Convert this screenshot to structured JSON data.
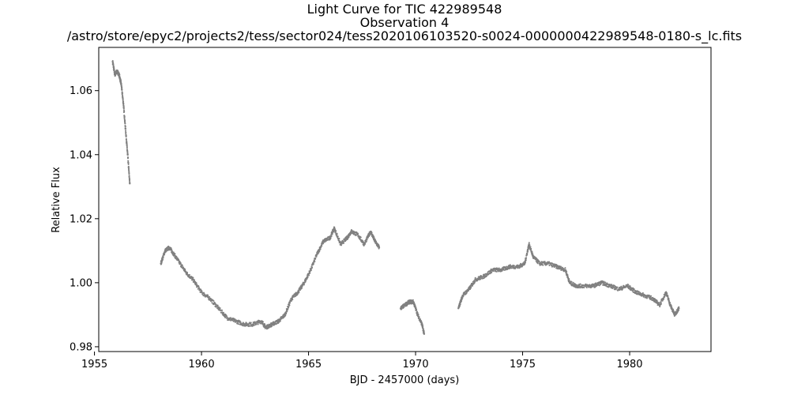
{
  "chart_data": {
    "type": "scatter",
    "title": "Light Curve for TIC 422989548",
    "subtitle": "Observation 4",
    "filename": "/astro/store/epyc2/projects2/tess/sector024/tess2020106103520-s0024-0000000422989548-0180-s_lc.fits",
    "xlabel": "BJD - 2457000 (days)",
    "ylabel": "Relative Flux",
    "xlim": [
      1955.2,
      1983.8
    ],
    "ylim": [
      0.9785,
      1.0735
    ],
    "xticks": [
      1955,
      1960,
      1965,
      1970,
      1975,
      1980
    ],
    "xtick_labels": [
      "1955",
      "1960",
      "1965",
      "1970",
      "1975",
      "1980"
    ],
    "yticks": [
      0.98,
      1.0,
      1.02,
      1.04,
      1.06
    ],
    "ytick_labels": [
      "0.98",
      "1.00",
      "1.02",
      "1.04",
      "1.06"
    ],
    "grid": false,
    "marker_color": "#808080",
    "series": [
      {
        "name": "",
        "segments": [
          {
            "x": [
              1955.85,
              1955.95,
              1956.05,
              1956.15,
              1956.25,
              1956.35,
              1956.45,
              1956.55,
              1956.65
            ],
            "y": [
              1.069,
              1.065,
              1.066,
              1.065,
              1.062,
              1.056,
              1.048,
              1.04,
              1.031
            ]
          },
          {
            "x": [
              1958.1,
              1958.3,
              1958.5,
              1958.7,
              1959.0,
              1959.3,
              1959.6,
              1960.0,
              1960.4,
              1960.8,
              1961.2,
              1961.6,
              1962.0,
              1962.4,
              1962.8,
              1963.0,
              1963.3,
              1963.6,
              1963.9,
              1964.2,
              1964.5,
              1964.8,
              1965.1,
              1965.4,
              1965.7,
              1966.0,
              1966.2,
              1966.5,
              1966.8,
              1967.0,
              1967.3,
              1967.6,
              1967.9,
              1968.1,
              1968.3
            ],
            "y": [
              1.006,
              1.01,
              1.011,
              1.009,
              1.006,
              1.003,
              1.001,
              0.997,
              0.995,
              0.992,
              0.989,
              0.988,
              0.987,
              0.987,
              0.988,
              0.986,
              0.987,
              0.988,
              0.99,
              0.995,
              0.997,
              1.0,
              1.004,
              1.009,
              1.013,
              1.014,
              1.017,
              1.012,
              1.014,
              1.016,
              1.015,
              1.012,
              1.016,
              1.013,
              1.011
            ]
          },
          {
            "x": [
              1969.3,
              1969.5,
              1969.7,
              1969.9,
              1970.1,
              1970.3,
              1970.4
            ],
            "y": [
              0.992,
              0.993,
              0.994,
              0.994,
              0.99,
              0.987,
              0.984
            ]
          },
          {
            "x": [
              1972.0,
              1972.2,
              1972.5,
              1972.8,
              1973.2,
              1973.6,
              1974.0,
              1974.4,
              1974.8,
              1975.1,
              1975.3,
              1975.5,
              1975.8,
              1976.2,
              1976.6,
              1977.0,
              1977.2,
              1977.5,
              1977.9,
              1978.3,
              1978.7,
              1979.1,
              1979.5,
              1979.9,
              1980.3,
              1980.7,
              1981.1,
              1981.4,
              1981.7,
              1981.9,
              1982.1,
              1982.3
            ],
            "y": [
              0.992,
              0.996,
              0.998,
              1.001,
              1.002,
              1.004,
              1.004,
              1.005,
              1.005,
              1.006,
              1.012,
              1.008,
              1.006,
              1.006,
              1.005,
              1.004,
              1.0,
              0.999,
              0.999,
              0.999,
              1.0,
              0.999,
              0.998,
              0.999,
              0.997,
              0.996,
              0.995,
              0.993,
              0.997,
              0.993,
              0.99,
              0.992
            ]
          }
        ]
      }
    ]
  }
}
